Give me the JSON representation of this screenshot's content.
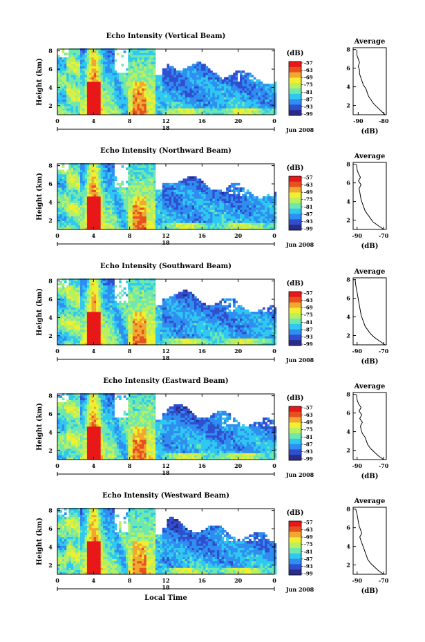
{
  "chart_data": [
    {
      "type": "heatmap",
      "title": "Echo Intensity (Vertical Beam)",
      "ylabel": "Height (km)",
      "x_ticks": [
        "0",
        "4",
        "8",
        "12",
        "16",
        "20",
        "0"
      ],
      "date_label": "18",
      "date_right": "Jun 2008",
      "y_ticks": [
        "2",
        "4",
        "6",
        "8"
      ],
      "ylim": [
        1,
        8.2
      ],
      "colorbar": {
        "unit": "(dB)",
        "ticks": [
          "-57",
          "-63",
          "-69",
          "-75",
          "-81",
          "-87",
          "-93",
          "-99"
        ]
      },
      "profile": {
        "title": "Average",
        "xlabel": "(dB)",
        "x_ticks": [
          "-90",
          "-80"
        ],
        "xlim": [
          -92,
          -79
        ],
        "y_ticks": [
          "2",
          "4",
          "6",
          "8"
        ],
        "ylim": [
          1,
          8.2
        ],
        "x": [
          -79.5,
          -81,
          -82.5,
          -84,
          -85,
          -86,
          -86.5,
          -87,
          -88,
          -88.5,
          -89,
          -89.5,
          -89.5,
          -90,
          -89.5,
          -90,
          -90.5,
          -90.5
        ],
        "y": [
          1.0,
          1.4,
          1.8,
          2.2,
          2.6,
          3.0,
          3.4,
          3.8,
          4.2,
          4.6,
          5.0,
          5.4,
          5.8,
          6.2,
          6.6,
          7.0,
          7.4,
          8.0
        ]
      }
    },
    {
      "type": "heatmap",
      "title": "Echo Intensity (Northward Beam)",
      "ylabel": "Height (km)",
      "x_ticks": [
        "0",
        "4",
        "8",
        "12",
        "16",
        "20",
        "0"
      ],
      "date_label": "18",
      "date_right": "Jun 2008",
      "y_ticks": [
        "2",
        "4",
        "6",
        "8"
      ],
      "ylim": [
        1,
        8.2
      ],
      "colorbar": {
        "unit": "(dB)",
        "ticks": [
          "-57",
          "-63",
          "-69",
          "-75",
          "-81",
          "-87",
          "-93",
          "-99"
        ]
      },
      "profile": {
        "title": "Average",
        "xlabel": "(dB)",
        "x_ticks": [
          "-90",
          "-70"
        ],
        "xlim": [
          -93,
          -68
        ],
        "y_ticks": [
          "2",
          "4",
          "6",
          "8"
        ],
        "ylim": [
          1,
          8.2
        ],
        "x": [
          -70,
          -74,
          -78,
          -80,
          -82,
          -84,
          -85,
          -86,
          -87,
          -87.5,
          -88,
          -88.5,
          -87,
          -89,
          -87.5,
          -89,
          -90,
          -90.5
        ],
        "y": [
          1.0,
          1.4,
          1.8,
          2.2,
          2.6,
          3.0,
          3.4,
          3.8,
          4.2,
          4.6,
          5.0,
          5.4,
          5.8,
          6.2,
          6.6,
          7.0,
          7.4,
          8.0
        ]
      }
    },
    {
      "type": "heatmap",
      "title": "Echo Intensity (Southward Beam)",
      "ylabel": "Height (km)",
      "x_ticks": [
        "0",
        "4",
        "8",
        "12",
        "16",
        "20",
        "0"
      ],
      "date_label": "18",
      "date_right": "Jun 2008",
      "y_ticks": [
        "2",
        "4",
        "6",
        "8"
      ],
      "ylim": [
        1,
        8.2
      ],
      "colorbar": {
        "unit": "(dB)",
        "ticks": [
          "-57",
          "-63",
          "-69",
          "-75",
          "-81",
          "-87",
          "-93",
          "-99"
        ]
      },
      "profile": {
        "title": "Average",
        "xlabel": "(dB)",
        "x_ticks": [
          "-90",
          "-70"
        ],
        "xlim": [
          -93,
          -68
        ],
        "y_ticks": [
          "2",
          "4",
          "6",
          "8"
        ],
        "ylim": [
          1,
          8.2
        ],
        "x": [
          -69,
          -73,
          -77,
          -80,
          -82,
          -84,
          -85,
          -86,
          -87,
          -87.5,
          -88,
          -88.5,
          -89,
          -89.5,
          -90,
          -90.5,
          -91,
          -91.5
        ],
        "y": [
          1.0,
          1.4,
          1.8,
          2.2,
          2.6,
          3.0,
          3.4,
          3.8,
          4.2,
          4.6,
          5.0,
          5.4,
          5.8,
          6.2,
          6.6,
          7.0,
          7.4,
          8.0
        ]
      }
    },
    {
      "type": "heatmap",
      "title": "Echo Intensity (Eastward Beam)",
      "ylabel": "Height (km)",
      "x_ticks": [
        "0",
        "4",
        "8",
        "12",
        "16",
        "20",
        "0"
      ],
      "date_label": "18",
      "date_right": "Jun 2008",
      "y_ticks": [
        "2",
        "4",
        "6",
        "8"
      ],
      "ylim": [
        1,
        8.2
      ],
      "colorbar": {
        "unit": "(dB)",
        "ticks": [
          "-57",
          "-63",
          "-69",
          "-75",
          "-81",
          "-87",
          "-93",
          "-99"
        ]
      },
      "profile": {
        "title": "Average",
        "xlabel": "(dB)",
        "x_ticks": [
          "-90",
          "-70"
        ],
        "xlim": [
          -93,
          -68
        ],
        "y_ticks": [
          "2",
          "4",
          "6",
          "8"
        ],
        "ylim": [
          1,
          8.2
        ],
        "x": [
          -70,
          -74,
          -77,
          -80,
          -82,
          -83,
          -84,
          -86,
          -87,
          -87.5,
          -86,
          -88,
          -86.5,
          -88.5,
          -87,
          -89,
          -90,
          -90.5
        ],
        "y": [
          1.0,
          1.4,
          1.8,
          2.2,
          2.6,
          3.0,
          3.4,
          3.8,
          4.2,
          4.6,
          5.0,
          5.4,
          5.8,
          6.2,
          6.6,
          7.0,
          7.4,
          8.0
        ]
      }
    },
    {
      "type": "heatmap",
      "title": "Echo Intensity (Westward Beam)",
      "ylabel": "Height (km)",
      "x_ticks": [
        "0",
        "4",
        "8",
        "12",
        "16",
        "20",
        "0"
      ],
      "date_label": "18",
      "date_right": "Jun 2008",
      "xlabel": "Local Time",
      "y_ticks": [
        "2",
        "4",
        "6",
        "8"
      ],
      "ylim": [
        1,
        8.2
      ],
      "colorbar": {
        "unit": "(dB)",
        "ticks": [
          "-57",
          "-63",
          "-69",
          "-75",
          "-81",
          "-87",
          "-93",
          "-99"
        ]
      },
      "profile": {
        "title": "Average",
        "xlabel": "(dB)",
        "x_ticks": [
          "-90",
          "-70"
        ],
        "xlim": [
          -93,
          -68
        ],
        "y_ticks": [
          "2",
          "4",
          "6",
          "8"
        ],
        "ylim": [
          1,
          8.2
        ],
        "x": [
          -70,
          -74,
          -77,
          -80,
          -82,
          -83,
          -84,
          -85,
          -86,
          -87,
          -88,
          -86.5,
          -87.5,
          -88.5,
          -89,
          -89.5,
          -90,
          -91
        ],
        "y": [
          1.0,
          1.4,
          1.8,
          2.2,
          2.6,
          3.0,
          3.4,
          3.8,
          4.2,
          4.6,
          5.0,
          5.4,
          5.8,
          6.2,
          6.6,
          7.0,
          7.4,
          8.0
        ]
      }
    }
  ],
  "colors": {
    "scale": [
      "#2b2b8c",
      "#2f4fd0",
      "#2f8ef0",
      "#2fc8f0",
      "#6fe8b0",
      "#b8f060",
      "#f0f030",
      "#f0a830",
      "#e85020",
      "#e81818"
    ]
  }
}
